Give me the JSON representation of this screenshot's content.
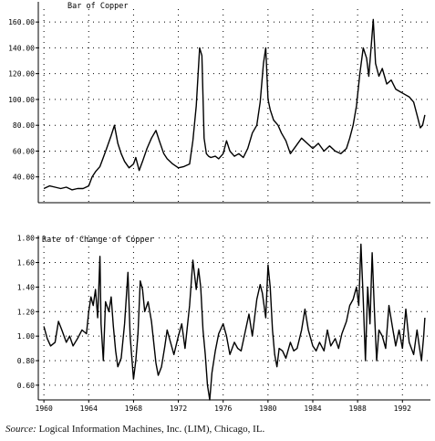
{
  "source": {
    "label": "Source:",
    "text": "Logical Information Machines, Inc. (LIM), Chicago, IL."
  },
  "chart_data": [
    {
      "type": "line",
      "title": "Bar of Copper",
      "xlabel": "",
      "ylabel": "",
      "xlim": [
        1959.5,
        1994.5
      ],
      "ylim": [
        20,
        170
      ],
      "yticks": [
        "40.00",
        "60.00",
        "80.00",
        "100.00",
        "120.00",
        "140.00",
        "160.00"
      ],
      "grid": true,
      "series": [
        {
          "x": [
            1960.0,
            1960.5,
            1961.0,
            1961.5,
            1962.0,
            1962.5,
            1963.0,
            1963.5,
            1964.0,
            1964.3,
            1964.6,
            1965.0,
            1965.3,
            1965.6,
            1966.0,
            1966.3,
            1966.6,
            1966.9,
            1967.2,
            1967.6,
            1968.0,
            1968.2,
            1968.5,
            1968.8,
            1969.2,
            1969.6,
            1970.0,
            1970.3,
            1970.7,
            1971.0,
            1971.5,
            1972.0,
            1972.5,
            1973.0,
            1973.3,
            1973.6,
            1973.9,
            1974.1,
            1974.3,
            1974.5,
            1974.7,
            1974.9,
            1975.3,
            1975.6,
            1976.0,
            1976.3,
            1976.6,
            1977.0,
            1977.4,
            1977.8,
            1978.2,
            1978.6,
            1979.0,
            1979.3,
            1979.6,
            1979.8,
            1980.0,
            1980.2,
            1980.5,
            1980.9,
            1981.2,
            1981.6,
            1982.0,
            1982.5,
            1983.0,
            1983.5,
            1984.0,
            1984.5,
            1985.0,
            1985.5,
            1986.0,
            1986.5,
            1987.0,
            1987.3,
            1987.6,
            1987.9,
            1988.2,
            1988.5,
            1988.8,
            1989.0,
            1989.2,
            1989.4,
            1989.6,
            1989.9,
            1990.2,
            1990.6,
            1991.0,
            1991.4,
            1991.8,
            1992.2,
            1992.6,
            1993.0,
            1993.3,
            1993.6,
            1993.8,
            1994.0
          ],
          "values": [
            31,
            33,
            32,
            31,
            32,
            30,
            31,
            31,
            33,
            40,
            44,
            48,
            55,
            62,
            72,
            80,
            66,
            58,
            52,
            47,
            50,
            55,
            45,
            52,
            62,
            70,
            76,
            68,
            58,
            54,
            50,
            47,
            48,
            50,
            68,
            95,
            140,
            134,
            70,
            58,
            56,
            55,
            56,
            54,
            58,
            68,
            60,
            56,
            58,
            55,
            62,
            74,
            80,
            98,
            128,
            140,
            100,
            92,
            84,
            80,
            74,
            68,
            58,
            64,
            70,
            66,
            62,
            66,
            60,
            64,
            60,
            58,
            62,
            70,
            80,
            95,
            120,
            140,
            132,
            118,
            140,
            162,
            128,
            118,
            124,
            112,
            115,
            108,
            106,
            104,
            102,
            98,
            88,
            78,
            80,
            88
          ]
        }
      ]
    },
    {
      "type": "line",
      "title": "Rate of Change of Copper",
      "xlabel": "",
      "ylabel": "",
      "xlim": [
        1959.5,
        1994.5
      ],
      "ylim": [
        0.48,
        1.82
      ],
      "yticks": [
        "0.60",
        "0.80",
        "1.00",
        "1.20",
        "1.40",
        "1.60",
        "1.80"
      ],
      "xticks": [
        "1960",
        "1964",
        "1968",
        "1972",
        "1976",
        "1980",
        "1984",
        "1988",
        "1992"
      ],
      "grid": true,
      "series": [
        {
          "x": [
            1960.0,
            1960.3,
            1960.6,
            1961.0,
            1961.3,
            1961.6,
            1962.0,
            1962.3,
            1962.6,
            1963.0,
            1963.4,
            1963.8,
            1964.0,
            1964.2,
            1964.4,
            1964.6,
            1964.8,
            1965.0,
            1965.1,
            1965.3,
            1965.5,
            1965.8,
            1966.0,
            1966.2,
            1966.4,
            1966.6,
            1966.9,
            1967.2,
            1967.5,
            1967.7,
            1968.0,
            1968.2,
            1968.4,
            1968.6,
            1968.8,
            1969.0,
            1969.3,
            1969.6,
            1970.0,
            1970.2,
            1970.5,
            1970.8,
            1971.0,
            1971.3,
            1971.6,
            1972.0,
            1972.3,
            1972.6,
            1973.0,
            1973.3,
            1973.6,
            1973.8,
            1974.0,
            1974.2,
            1974.4,
            1974.6,
            1974.8,
            1975.0,
            1975.3,
            1975.6,
            1976.0,
            1976.3,
            1976.6,
            1977.0,
            1977.3,
            1977.6,
            1978.0,
            1978.3,
            1978.6,
            1979.0,
            1979.3,
            1979.5,
            1979.8,
            1980.0,
            1980.2,
            1980.4,
            1980.6,
            1980.8,
            1981.0,
            1981.3,
            1981.6,
            1982.0,
            1982.3,
            1982.6,
            1983.0,
            1983.3,
            1983.6,
            1984.0,
            1984.3,
            1984.6,
            1985.0,
            1985.3,
            1985.6,
            1986.0,
            1986.3,
            1986.6,
            1987.0,
            1987.3,
            1987.6,
            1987.9,
            1988.1,
            1988.3,
            1988.5,
            1988.7,
            1988.9,
            1989.1,
            1989.3,
            1989.5,
            1989.7,
            1989.9,
            1990.2,
            1990.5,
            1990.8,
            1991.1,
            1991.4,
            1991.7,
            1992.0,
            1992.3,
            1992.6,
            1993.0,
            1993.3,
            1993.5,
            1993.7,
            1993.9,
            1994.0
          ],
          "values": [
            1.08,
            0.98,
            0.92,
            0.95,
            1.12,
            1.05,
            0.95,
            1.0,
            0.92,
            0.98,
            1.05,
            1.02,
            1.2,
            1.32,
            1.25,
            1.38,
            1.15,
            1.65,
            1.1,
            0.8,
            1.28,
            1.2,
            1.32,
            1.08,
            0.88,
            0.75,
            0.82,
            1.1,
            1.52,
            1.0,
            0.65,
            0.8,
            1.02,
            1.45,
            1.38,
            1.2,
            1.28,
            1.12,
            0.78,
            0.68,
            0.75,
            0.92,
            1.05,
            0.95,
            0.85,
            1.0,
            1.1,
            0.9,
            1.25,
            1.62,
            1.38,
            1.55,
            1.4,
            1.05,
            0.85,
            0.6,
            0.48,
            0.7,
            0.88,
            1.02,
            1.1,
            1.0,
            0.85,
            0.95,
            0.9,
            0.88,
            1.05,
            1.18,
            1.0,
            1.3,
            1.42,
            1.35,
            1.15,
            1.58,
            1.4,
            1.05,
            0.85,
            0.75,
            0.9,
            0.88,
            0.82,
            0.95,
            0.88,
            0.9,
            1.05,
            1.22,
            1.05,
            0.92,
            0.88,
            0.95,
            0.88,
            1.05,
            0.92,
            0.98,
            0.9,
            1.02,
            1.12,
            1.25,
            1.3,
            1.4,
            1.25,
            1.75,
            1.3,
            0.8,
            1.4,
            1.1,
            1.68,
            1.2,
            0.8,
            1.05,
            1.0,
            0.9,
            1.25,
            1.08,
            0.92,
            1.05,
            0.9,
            1.22,
            0.95,
            0.85,
            1.05,
            0.92,
            0.8,
            1.0,
            1.15
          ]
        }
      ]
    }
  ]
}
